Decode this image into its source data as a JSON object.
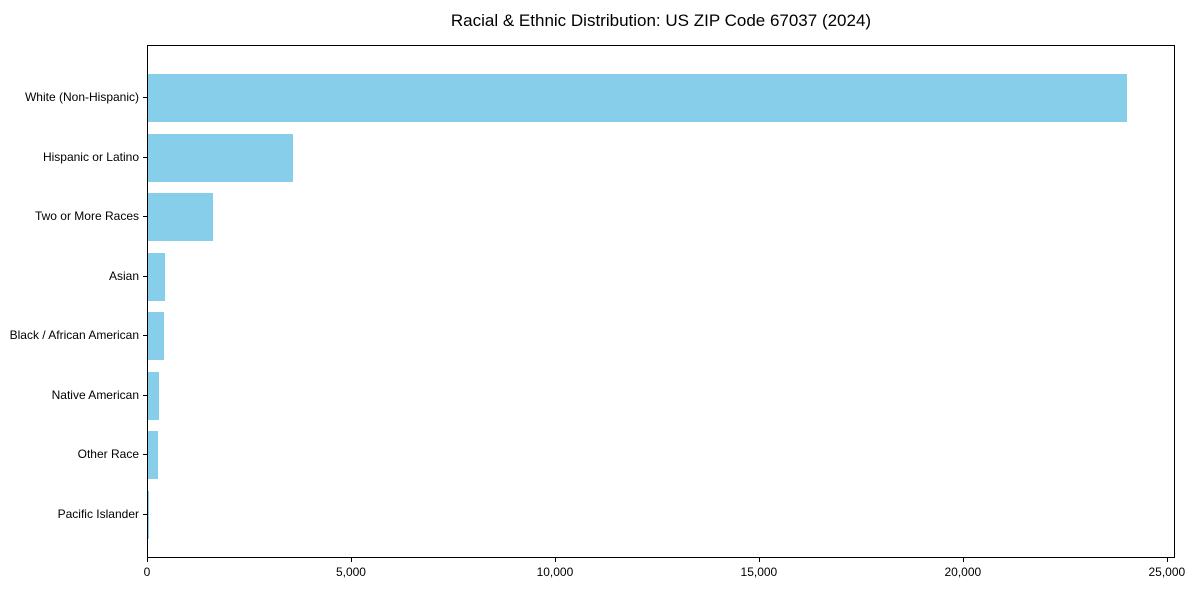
{
  "chart_data": {
    "type": "bar",
    "orientation": "horizontal",
    "title": "Racial & Ethnic Distribution: US ZIP Code 67037 (2024)",
    "categories": [
      "White (Non-Hispanic)",
      "Hispanic or Latino",
      "Two or More Races",
      "Asian",
      "Black / African American",
      "Native American",
      "Other Race",
      "Pacific Islander"
    ],
    "values": [
      24000,
      3550,
      1590,
      420,
      385,
      260,
      235,
      15
    ],
    "xlabel": "",
    "ylabel": "",
    "xlim": [
      0,
      25200
    ],
    "x_ticks": [
      0,
      5000,
      10000,
      15000,
      20000,
      25000
    ],
    "x_tick_labels": [
      "0",
      "5,000",
      "10,000",
      "15,000",
      "20,000",
      "25,000"
    ],
    "bar_color": "#87CEEB",
    "spine_color": "#000000",
    "background_color": "#ffffff",
    "grid": false,
    "legend": null
  }
}
